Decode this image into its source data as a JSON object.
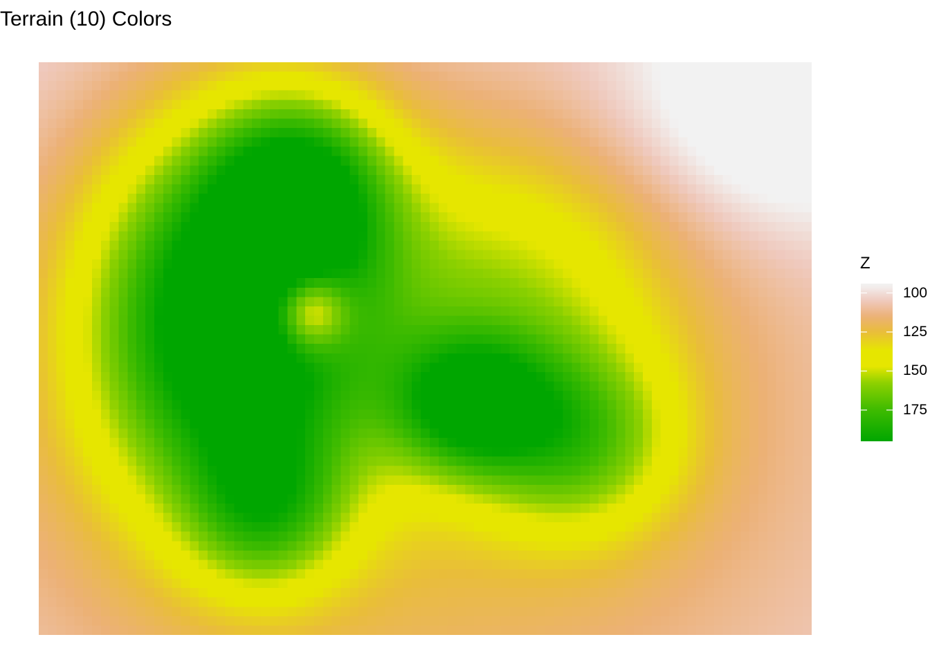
{
  "chart_data": {
    "type": "heatmap",
    "title": "Terrain (10) Colors",
    "xlabel": "",
    "ylabel": "",
    "legend": {
      "title": "Z",
      "placement": "right",
      "ticks": [
        100,
        125,
        150,
        175
      ],
      "tick_labels": [
        "100",
        "125",
        "150",
        "175"
      ],
      "range": [
        94,
        195
      ]
    },
    "grid": false,
    "grid_size": {
      "cols": 87,
      "rows": 61
    },
    "palette": "terrain.colors(10)",
    "palette_stops": [
      {
        "value": 95,
        "color": "#F2F2F2"
      },
      {
        "value": 105,
        "color": "#EFC9BD"
      },
      {
        "value": 115,
        "color": "#ECB176"
      },
      {
        "value": 125,
        "color": "#E9BD3A"
      },
      {
        "value": 137,
        "color": "#E6E600"
      },
      {
        "value": 147,
        "color": "#E6E600"
      },
      {
        "value": 158,
        "color": "#8BD000"
      },
      {
        "value": 175,
        "color": "#3EBB00"
      },
      {
        "value": 195,
        "color": "#00A600"
      }
    ],
    "terrain_features": [
      {
        "cx": 21,
        "cy": 27,
        "sx": 11,
        "sy": 14,
        "h": 100
      },
      {
        "cx": 29,
        "cy": 13,
        "sx": 7,
        "sy": 7,
        "h": 66
      },
      {
        "cx": 48,
        "cy": 36,
        "sx": 6,
        "sy": 5,
        "h": 62
      },
      {
        "cx": 60,
        "cy": 40,
        "sx": 8,
        "sy": 7,
        "h": 48
      },
      {
        "cx": 25,
        "cy": 47,
        "sx": 6,
        "sy": 6,
        "h": 42
      },
      {
        "cx": 52,
        "cy": 24,
        "sx": 13,
        "sy": 11,
        "h": 34
      },
      {
        "cx": 30,
        "cy": 26,
        "sx": 3,
        "sy": 3,
        "h": -60
      },
      {
        "cx": 82,
        "cy": 5,
        "sx": 12,
        "sy": 9,
        "h": -22
      },
      {
        "cx": 40,
        "cy": 40,
        "sx": 40,
        "sy": 30,
        "h": 30
      }
    ],
    "base_value": 95
  }
}
